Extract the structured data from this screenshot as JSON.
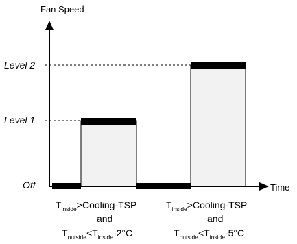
{
  "axes": {
    "y_title": "Fan Speed",
    "x_title": "Time"
  },
  "levels": {
    "off": "Off",
    "level1": "Level 1",
    "level2": "Level 2"
  },
  "conditions": {
    "left": {
      "line1_var": "T",
      "line1_sub": "inside",
      "line1_rest": ">Cooling-TSP",
      "line2": "and",
      "line3_var1": "T",
      "line3_sub1": "outside",
      "line3_op": "<T",
      "line3_sub2": "inside",
      "line3_rest": "-2°C"
    },
    "right": {
      "line1_var": "T",
      "line1_sub": "inside",
      "line1_rest": ">Cooling-TSP",
      "line2": "and",
      "line3_var1": "T",
      "line3_sub1": "outside",
      "line3_op": "<T",
      "line3_sub2": "inside",
      "line3_rest": "-5°C"
    }
  },
  "colors": {
    "bar_fill": "#f2f2f2",
    "bar_cap": "#000000",
    "axis": "#000000"
  }
}
